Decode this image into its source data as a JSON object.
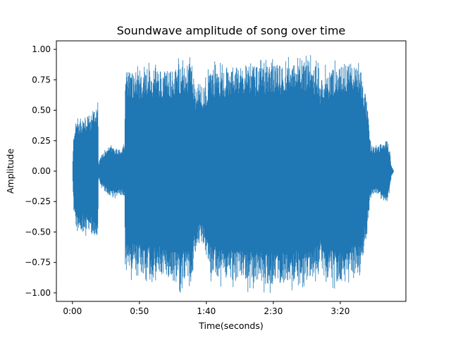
{
  "chart_data": {
    "type": "area",
    "title": "Soundwave amplitude of song over time",
    "xlabel": "Time(seconds)",
    "ylabel": "Amplitude",
    "xlim": [
      -12,
      249
    ],
    "ylim": [
      -1.07,
      1.07
    ],
    "xticks": [
      {
        "value": 0,
        "label": "0:00"
      },
      {
        "value": 50,
        "label": "0:50"
      },
      {
        "value": 100,
        "label": "1:40"
      },
      {
        "value": 150,
        "label": "2:30"
      },
      {
        "value": 200,
        "label": "3:20"
      }
    ],
    "yticks": [
      {
        "value": -1.0,
        "label": "−1.00"
      },
      {
        "value": -0.75,
        "label": "−0.75"
      },
      {
        "value": -0.5,
        "label": "−0.50"
      },
      {
        "value": -0.25,
        "label": "−0.25"
      },
      {
        "value": 0.0,
        "label": "0.00"
      },
      {
        "value": 0.25,
        "label": "0.25"
      },
      {
        "value": 0.5,
        "label": "0.50"
      },
      {
        "value": 0.75,
        "label": "0.75"
      },
      {
        "value": 1.0,
        "label": "1.00"
      }
    ],
    "grid": false,
    "series": [
      {
        "color": "#1f77b4",
        "envelope": {
          "t": [
            0,
            1,
            3,
            8,
            15,
            19,
            19.5,
            21,
            26,
            30,
            35,
            38,
            39,
            39.5,
            45,
            50,
            55,
            60,
            65,
            70,
            75,
            80,
            82,
            84,
            89,
            92,
            95,
            98,
            103,
            110,
            120,
            130,
            140,
            150,
            160,
            170,
            175,
            180,
            184,
            185,
            186,
            190,
            200,
            205,
            210,
            215,
            220,
            222,
            223,
            226,
            230,
            235,
            237,
            238,
            240
          ],
          "upper": [
            0.0,
            0.34,
            0.42,
            0.44,
            0.46,
            0.6,
            0.05,
            0.12,
            0.2,
            0.2,
            0.18,
            0.2,
            0.22,
            0.83,
            0.83,
            0.82,
            0.83,
            0.83,
            0.84,
            0.83,
            0.83,
            0.88,
            0.86,
            0.85,
            0.9,
            0.68,
            0.72,
            0.68,
            0.84,
            0.84,
            0.85,
            0.86,
            0.86,
            0.87,
            0.88,
            0.88,
            0.92,
            0.88,
            0.85,
            0.66,
            0.82,
            0.82,
            0.88,
            0.9,
            0.87,
            0.85,
            0.54,
            0.32,
            0.2,
            0.2,
            0.22,
            0.26,
            0.17,
            0.05,
            0.0
          ],
          "lower": [
            0.0,
            -0.34,
            -0.48,
            -0.5,
            -0.52,
            -0.6,
            -0.05,
            -0.12,
            -0.18,
            -0.22,
            -0.2,
            -0.2,
            -0.22,
            -0.83,
            -0.83,
            -0.84,
            -0.85,
            -0.86,
            -0.86,
            -0.88,
            -0.92,
            -0.93,
            -0.9,
            -0.88,
            -0.9,
            -0.65,
            -0.6,
            -0.62,
            -0.84,
            -0.88,
            -0.9,
            -0.92,
            -0.93,
            -0.93,
            -0.92,
            -0.9,
            -0.9,
            -0.89,
            -0.85,
            -0.65,
            -0.85,
            -0.88,
            -0.92,
            -0.88,
            -0.85,
            -0.85,
            -0.5,
            -0.25,
            -0.2,
            -0.18,
            -0.22,
            -0.25,
            -0.15,
            -0.05,
            0.0
          ]
        }
      }
    ]
  }
}
